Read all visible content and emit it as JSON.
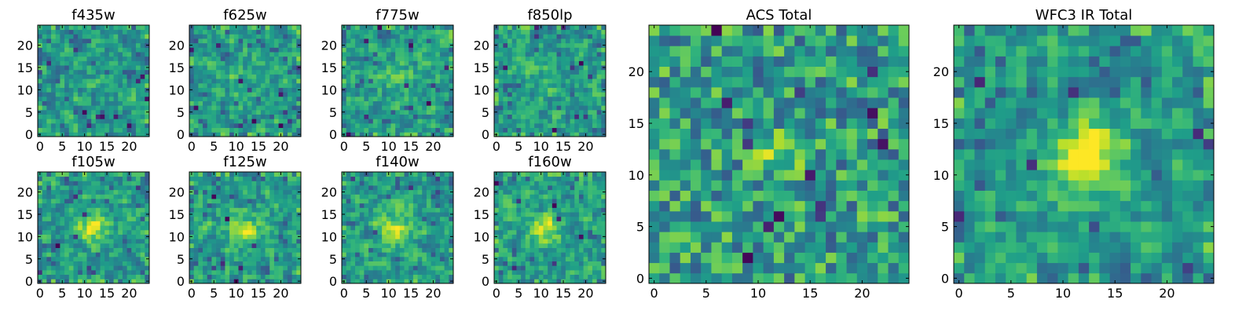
{
  "figure": {
    "background": "#ffffff"
  },
  "colormap": {
    "name": "viridis",
    "stops": [
      "#440154",
      "#482878",
      "#3e4989",
      "#31688e",
      "#26828e",
      "#1f9e89",
      "#35b779",
      "#6ece58",
      "#b5de2b",
      "#fde725"
    ]
  },
  "chart_data": [
    {
      "type": "heatmap",
      "title": "f435w",
      "xticks": [
        0,
        5,
        10,
        15,
        20
      ],
      "yticks": [
        0,
        5,
        10,
        15,
        20
      ],
      "xlim": [
        -0.5,
        24.5
      ],
      "ylim": [
        -0.5,
        24.5
      ],
      "grid_size": [
        25,
        25
      ],
      "noise_seed": 11,
      "blob_strength": 0.05,
      "blob_center": [
        12,
        12
      ],
      "blob_sigma": 2.5,
      "dark_spots": 12
    },
    {
      "type": "heatmap",
      "title": "f625w",
      "xticks": [
        0,
        5,
        10,
        15,
        20
      ],
      "yticks": [
        0,
        5,
        10,
        15,
        20
      ],
      "xlim": [
        -0.5,
        24.5
      ],
      "ylim": [
        -0.5,
        24.5
      ],
      "grid_size": [
        25,
        25
      ],
      "noise_seed": 23,
      "blob_strength": 0.1,
      "blob_center": [
        12,
        12
      ],
      "blob_sigma": 2.5,
      "dark_spots": 14
    },
    {
      "type": "heatmap",
      "title": "f775w",
      "xticks": [
        0,
        5,
        10,
        15,
        20
      ],
      "yticks": [
        0,
        5,
        10,
        15,
        20
      ],
      "xlim": [
        -0.5,
        24.5
      ],
      "ylim": [
        -0.5,
        24.5
      ],
      "grid_size": [
        25,
        25
      ],
      "noise_seed": 37,
      "blob_strength": 0.15,
      "blob_center": [
        12,
        12
      ],
      "blob_sigma": 2.5,
      "dark_spots": 10
    },
    {
      "type": "heatmap",
      "title": "f850lp",
      "xticks": [
        0,
        5,
        10,
        15,
        20
      ],
      "yticks": [
        0,
        5,
        10,
        15,
        20
      ],
      "xlim": [
        -0.5,
        24.5
      ],
      "ylim": [
        -0.5,
        24.5
      ],
      "grid_size": [
        25,
        25
      ],
      "noise_seed": 41,
      "blob_strength": 0.1,
      "blob_center": [
        12,
        12
      ],
      "blob_sigma": 2.5,
      "dark_spots": 12
    },
    {
      "type": "heatmap",
      "title": "f105w",
      "xticks": [
        0,
        5,
        10,
        15,
        20
      ],
      "yticks": [
        0,
        5,
        10,
        15,
        20
      ],
      "xlim": [
        -0.5,
        24.5
      ],
      "ylim": [
        -0.5,
        24.5
      ],
      "grid_size": [
        25,
        25
      ],
      "noise_seed": 53,
      "blob_strength": 0.35,
      "blob_center": [
        12,
        12
      ],
      "blob_sigma": 2.5,
      "dark_spots": 9
    },
    {
      "type": "heatmap",
      "title": "f125w",
      "xticks": [
        0,
        5,
        10,
        15,
        20
      ],
      "yticks": [
        0,
        5,
        10,
        15,
        20
      ],
      "xlim": [
        -0.5,
        24.5
      ],
      "ylim": [
        -0.5,
        24.5
      ],
      "grid_size": [
        25,
        25
      ],
      "noise_seed": 67,
      "blob_strength": 0.3,
      "blob_center": [
        12,
        12
      ],
      "blob_sigma": 2.5,
      "dark_spots": 8
    },
    {
      "type": "heatmap",
      "title": "f140w",
      "xticks": [
        0,
        5,
        10,
        15,
        20
      ],
      "yticks": [
        0,
        5,
        10,
        15,
        20
      ],
      "xlim": [
        -0.5,
        24.5
      ],
      "ylim": [
        -0.5,
        24.5
      ],
      "grid_size": [
        25,
        25
      ],
      "noise_seed": 71,
      "blob_strength": 0.3,
      "blob_center": [
        12,
        12
      ],
      "blob_sigma": 2.5,
      "dark_spots": 5
    },
    {
      "type": "heatmap",
      "title": "f160w",
      "xticks": [
        0,
        5,
        10,
        15,
        20
      ],
      "yticks": [
        0,
        5,
        10,
        15,
        20
      ],
      "xlim": [
        -0.5,
        24.5
      ],
      "ylim": [
        -0.5,
        24.5
      ],
      "grid_size": [
        25,
        25
      ],
      "noise_seed": 83,
      "blob_strength": 0.35,
      "blob_center": [
        11,
        12
      ],
      "blob_sigma": 2.5,
      "dark_spots": 7
    },
    {
      "type": "heatmap",
      "title": "ACS Total",
      "xticks": [
        0,
        5,
        10,
        15,
        20
      ],
      "yticks": [
        0,
        5,
        10,
        15,
        20
      ],
      "xlim": [
        -0.5,
        24.5
      ],
      "ylim": [
        -0.5,
        24.5
      ],
      "grid_size": [
        25,
        25
      ],
      "noise_seed": 97,
      "blob_strength": 0.25,
      "blob_center": [
        12,
        12
      ],
      "blob_sigma": 1.5,
      "dark_spots": 14
    },
    {
      "type": "heatmap",
      "title": "WFC3 IR Total",
      "xticks": [
        0,
        5,
        10,
        15,
        20
      ],
      "yticks": [
        0,
        5,
        10,
        15,
        20
      ],
      "xlim": [
        -0.5,
        24.5
      ],
      "ylim": [
        -0.5,
        24.5
      ],
      "grid_size": [
        25,
        25
      ],
      "noise_seed": 101,
      "blob_strength": 0.45,
      "blob_center": [
        12,
        12
      ],
      "blob_sigma": 2.5,
      "dark_spots": 8
    }
  ]
}
